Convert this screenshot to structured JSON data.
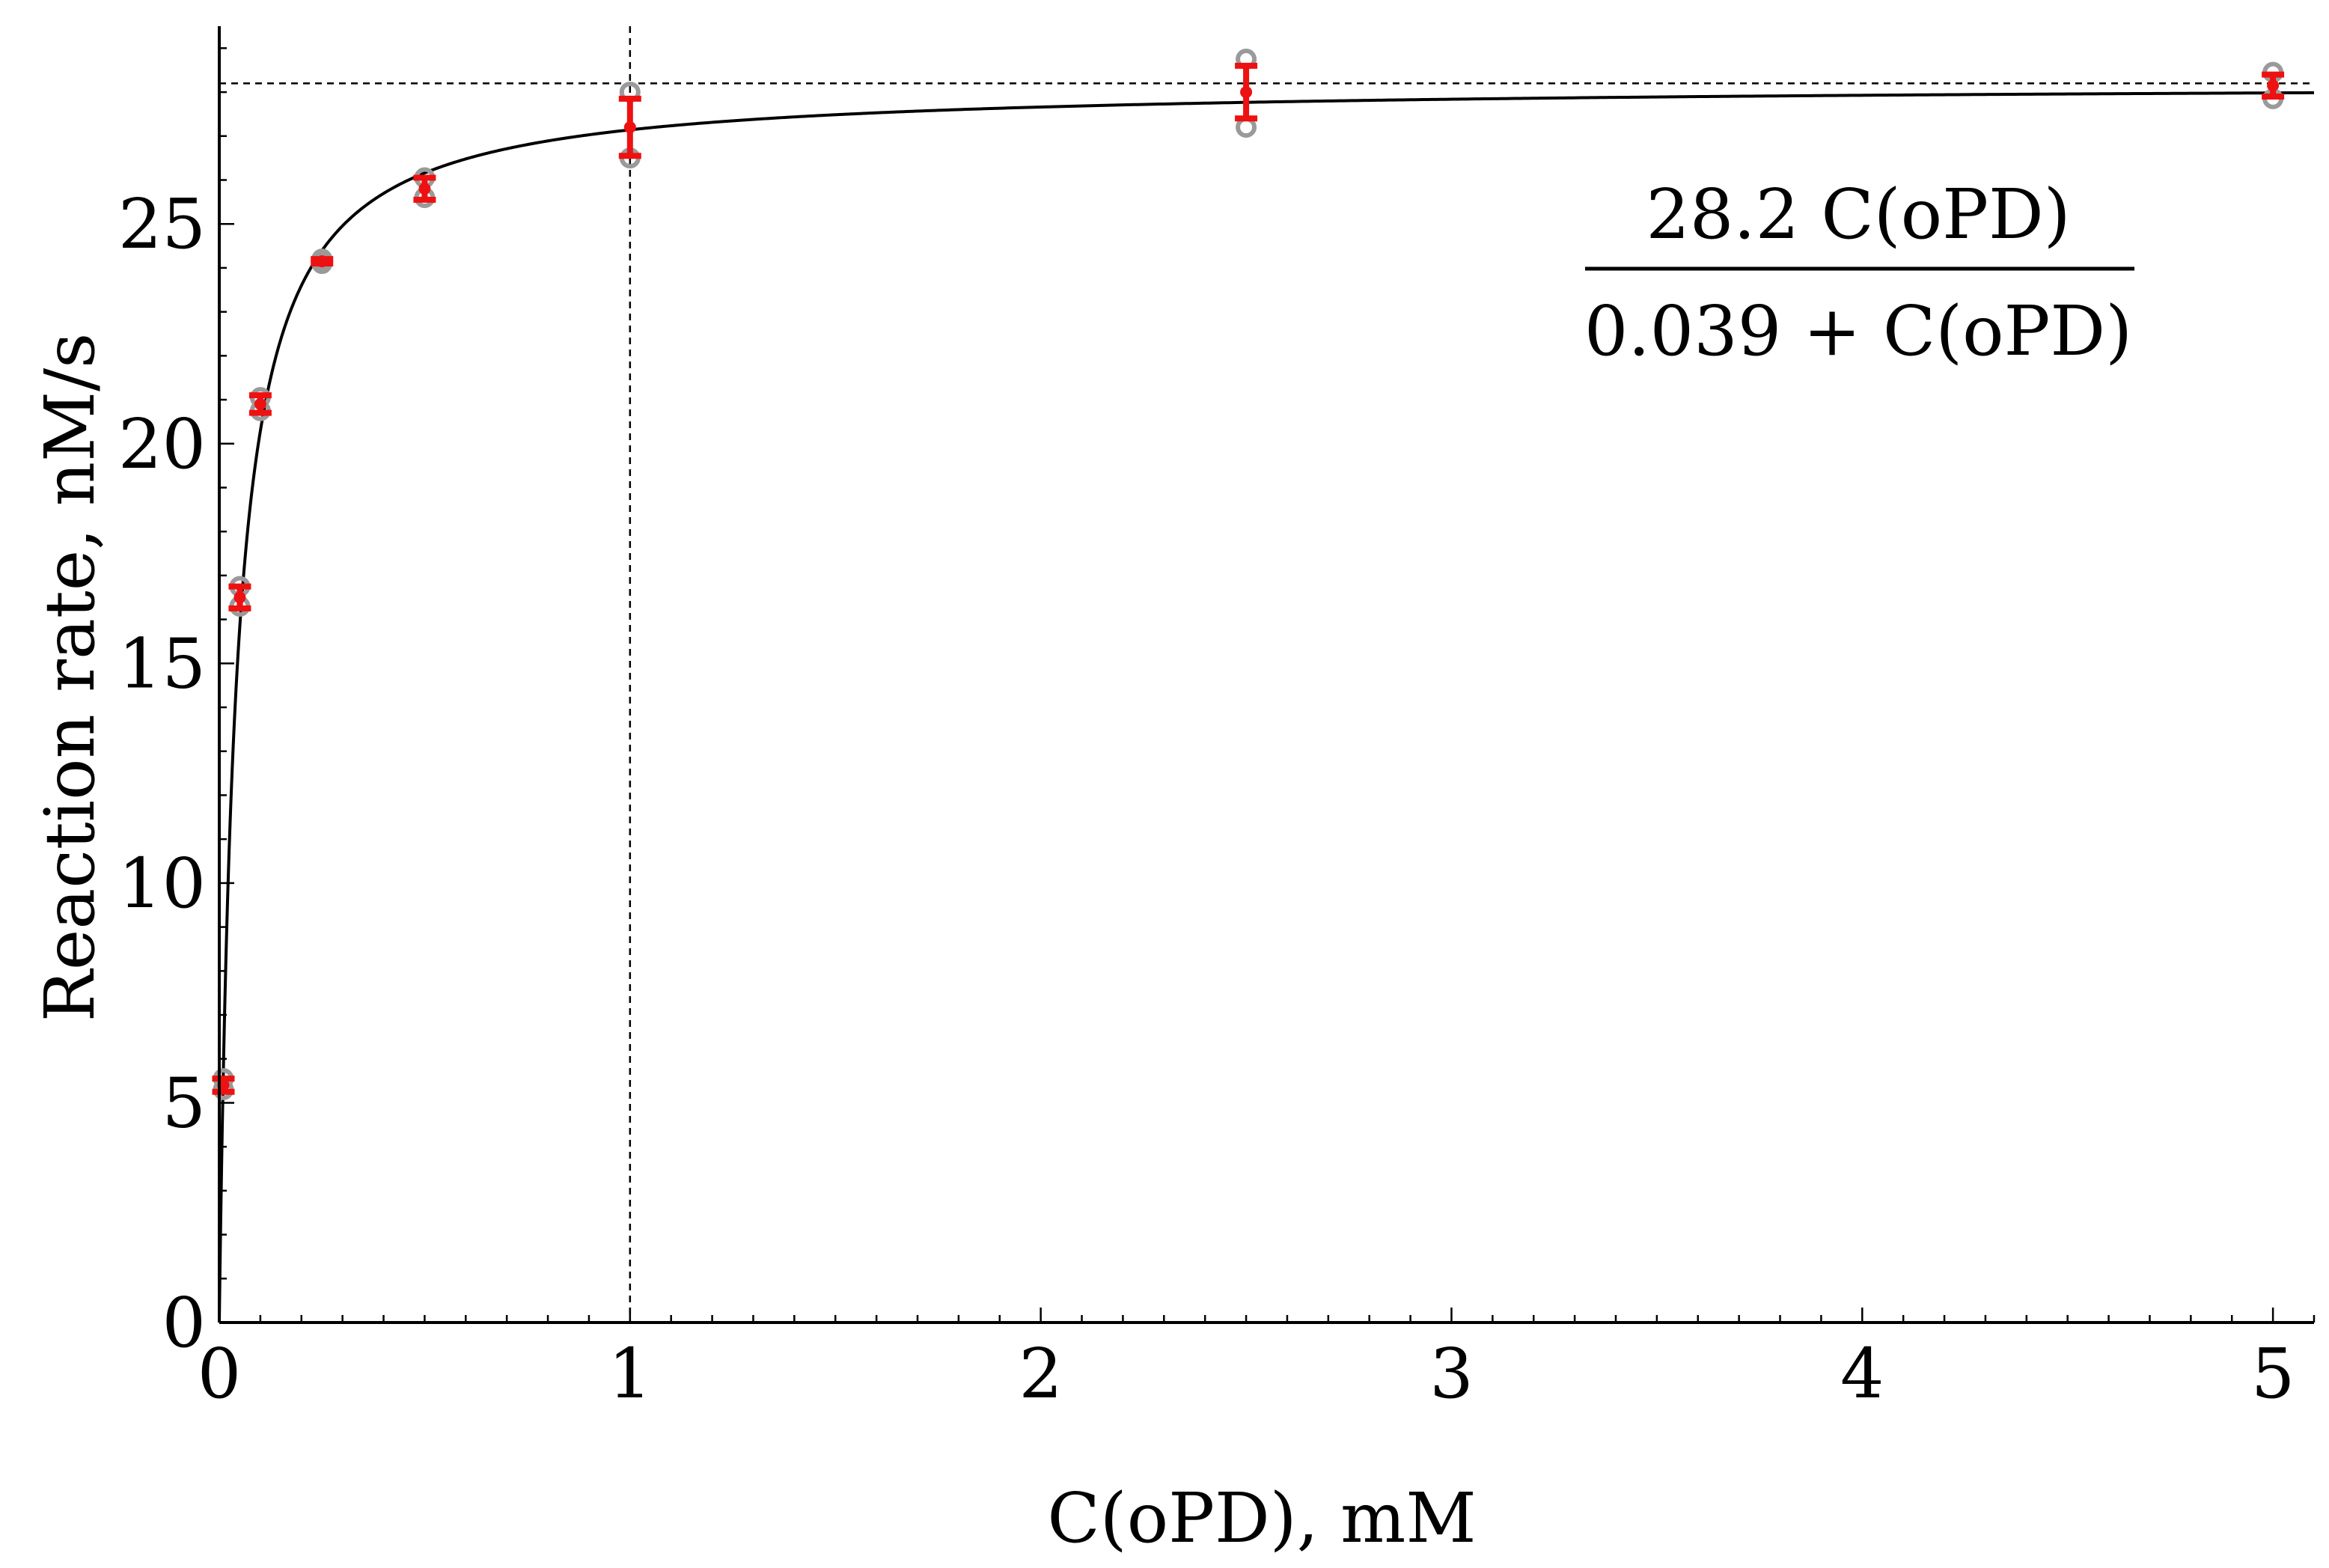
{
  "chart_data": {
    "type": "scatter",
    "title": "",
    "xlabel": "C(oPD), mM",
    "ylabel": "Reaction rate, nM/s",
    "xlim": [
      0,
      5.1
    ],
    "ylim": [
      0,
      29.5
    ],
    "x_ticks": [
      0,
      1,
      2,
      3,
      4,
      5
    ],
    "y_ticks": [
      0,
      5,
      10,
      15,
      20,
      25
    ],
    "grid": false,
    "legend": "none",
    "equation": {
      "numerator": "28.2 C(oPD)",
      "denominator": "0.039 + C(oPD)"
    },
    "fit": {
      "vmax": 28.2,
      "km": 0.039
    },
    "reference_lines": {
      "x": 1,
      "y": 28.2
    },
    "series": [
      {
        "kind": "replicates",
        "points": [
          {
            "x": 0.01,
            "y": [
              5.55,
              5.3
            ]
          },
          {
            "x": 0.05,
            "y": [
              16.75,
              16.3
            ]
          },
          {
            "x": 0.1,
            "y": [
              21.05,
              20.75
            ]
          },
          {
            "x": 0.25,
            "y": [
              24.2,
              24.1
            ]
          },
          {
            "x": 0.5,
            "y": [
              26.05,
              25.6
            ]
          },
          {
            "x": 1,
            "y": [
              28.0,
              26.5
            ]
          },
          {
            "x": 2.5,
            "y": [
              28.75,
              27.2
            ]
          },
          {
            "x": 5,
            "y": [
              28.45,
              27.85
            ]
          }
        ]
      },
      {
        "kind": "mean_with_error",
        "points": [
          {
            "x": 0.01,
            "y": 5.4,
            "err": 0.15
          },
          {
            "x": 0.05,
            "y": 16.5,
            "err": 0.25
          },
          {
            "x": 0.1,
            "y": 20.9,
            "err": 0.2
          },
          {
            "x": 0.25,
            "y": 24.15,
            "err": 0.05
          },
          {
            "x": 0.5,
            "y": 25.8,
            "err": 0.25
          },
          {
            "x": 1,
            "y": 27.2,
            "err": 0.65
          },
          {
            "x": 2.5,
            "y": 28.0,
            "err": 0.6
          },
          {
            "x": 5,
            "y": 28.15,
            "err": 0.25
          }
        ]
      }
    ],
    "colors": {
      "replicate": "#9a9a9a",
      "mean": "#ee1111",
      "fit": "#000000",
      "axis": "#000000"
    }
  }
}
